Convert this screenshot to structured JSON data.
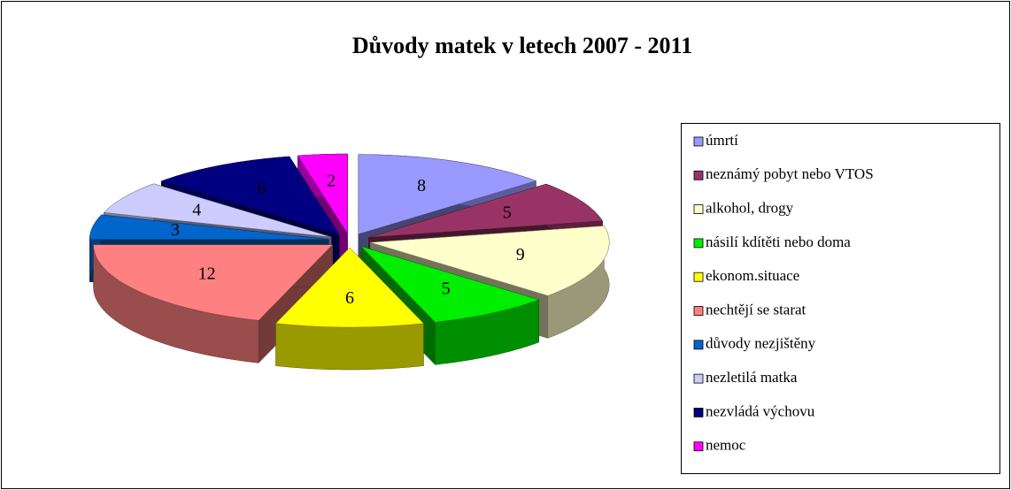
{
  "chart_data": {
    "type": "pie",
    "title": "Důvody matek v letech 2007 - 2011",
    "categories": [
      "úmrtí",
      "neznámý pobyt nebo VTOS",
      "alkohol, drogy",
      "násilí kdítěti nebo doma",
      "ekonom.situace",
      "nechtějí se starat",
      "důvody nezjištěny",
      "nezletilá matka",
      "nezvládá výchovu",
      "nemoc"
    ],
    "values": [
      8,
      5,
      9,
      5,
      6,
      12,
      3,
      4,
      6,
      2
    ],
    "colors": [
      "#9999ff",
      "#993366",
      "#ffffcc",
      "#00ee00",
      "#ffff00",
      "#ff8080",
      "#0066cc",
      "#ccccff",
      "#000080",
      "#ff00ff"
    ]
  }
}
